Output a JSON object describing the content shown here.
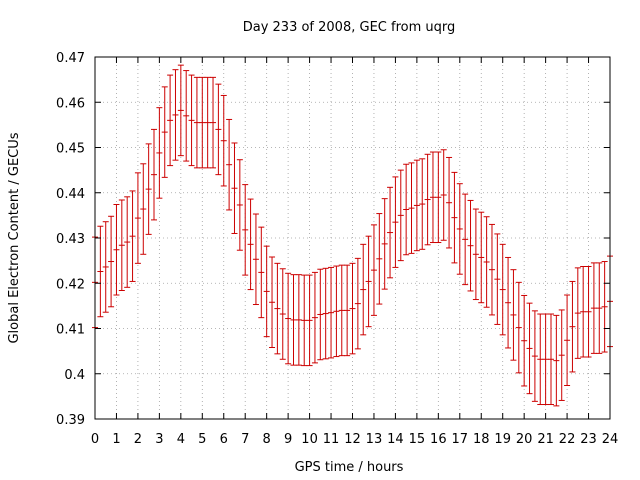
{
  "chart_data": {
    "type": "scatter",
    "title": "Day 233 of 2008, GEC from uqrg",
    "xlabel": "GPS time / hours",
    "ylabel": "Global Electron Content / GECUs",
    "xlim": [
      0,
      24
    ],
    "ylim": [
      0.39,
      0.47
    ],
    "xticks": [
      "0",
      "1",
      "2",
      "3",
      "4",
      "5",
      "6",
      "7",
      "8",
      "9",
      "10",
      "11",
      "12",
      "13",
      "14",
      "15",
      "16",
      "17",
      "18",
      "19",
      "20",
      "21",
      "22",
      "23",
      "24"
    ],
    "yticks": [
      "0.39",
      "0.4",
      "0.41",
      "0.42",
      "0.43",
      "0.44",
      "0.45",
      "0.46",
      "0.47"
    ],
    "grid": true,
    "colors": {
      "series": "#cc0000",
      "grid": "#a0a0a0",
      "axes": "#000000"
    },
    "error_bar_halfwidth": 0.01,
    "series": [
      {
        "x": [
          0.0,
          0.25,
          0.5,
          0.75,
          1.0,
          1.25,
          1.5,
          1.75,
          2.0,
          2.25,
          2.5,
          2.75,
          3.0,
          3.25,
          3.5,
          3.75,
          4.0,
          4.25,
          4.5,
          4.75,
          5.0,
          5.25,
          5.5,
          5.75,
          6.0,
          6.25,
          6.5,
          6.75,
          7.0,
          7.25,
          7.5,
          7.75,
          8.0,
          8.25,
          8.5,
          8.75,
          9.0,
          9.25,
          9.5,
          9.75,
          10.0,
          10.25,
          10.5,
          10.75,
          11.0,
          11.25,
          11.5,
          11.75,
          12.0,
          12.25,
          12.5,
          12.75,
          13.0,
          13.25,
          13.5,
          13.75,
          14.0,
          14.25,
          14.5,
          14.75,
          15.0,
          15.25,
          15.5,
          15.75,
          16.0,
          16.25,
          16.5,
          16.75,
          17.0,
          17.25,
          17.5,
          17.75,
          18.0,
          18.25,
          18.5,
          18.75,
          19.0,
          19.25,
          19.5,
          19.75,
          20.0,
          20.25,
          20.5,
          20.75,
          21.0,
          21.25,
          21.5,
          21.75,
          22.0,
          22.25,
          22.5,
          22.75,
          23.0,
          23.25,
          23.5,
          23.75,
          24.0
        ],
        "y": [
          0.4202,
          0.4226,
          0.4236,
          0.4248,
          0.4274,
          0.4284,
          0.4291,
          0.4304,
          0.4344,
          0.4364,
          0.4408,
          0.444,
          0.4488,
          0.4534,
          0.456,
          0.4572,
          0.4582,
          0.457,
          0.456,
          0.4555,
          0.4555,
          0.4555,
          0.4555,
          0.454,
          0.4515,
          0.4462,
          0.441,
          0.4373,
          0.4318,
          0.4286,
          0.4253,
          0.4224,
          0.4182,
          0.4158,
          0.4144,
          0.4132,
          0.4122,
          0.4119,
          0.4119,
          0.4118,
          0.4118,
          0.4124,
          0.4131,
          0.4133,
          0.4135,
          0.4138,
          0.414,
          0.414,
          0.4144,
          0.4155,
          0.4186,
          0.4204,
          0.4229,
          0.4254,
          0.4287,
          0.4312,
          0.4335,
          0.435,
          0.4363,
          0.4366,
          0.4372,
          0.4375,
          0.4385,
          0.439,
          0.439,
          0.4395,
          0.4378,
          0.4345,
          0.432,
          0.4297,
          0.4283,
          0.4264,
          0.4257,
          0.4247,
          0.423,
          0.4209,
          0.4186,
          0.4157,
          0.413,
          0.4102,
          0.4073,
          0.4056,
          0.4039,
          0.4032,
          0.4032,
          0.4032,
          0.4029,
          0.4041,
          0.4074,
          0.4104,
          0.4134,
          0.4137,
          0.4137,
          0.4145,
          0.4145,
          0.4148,
          0.416
        ]
      }
    ]
  }
}
